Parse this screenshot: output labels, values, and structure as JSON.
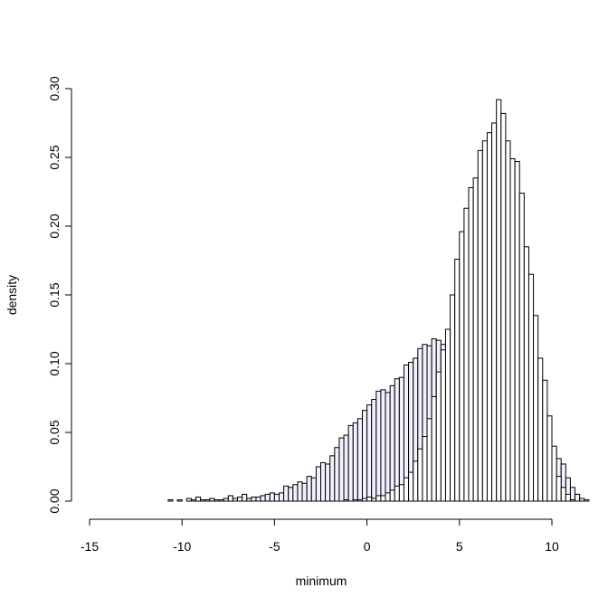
{
  "chart_data": {
    "type": "bar",
    "title": "",
    "xlabel": "minimum",
    "ylabel": "density",
    "xlim": [
      -15,
      10
    ],
    "ylim": [
      0,
      0.3
    ],
    "x_ticks": [
      "-15",
      "-10",
      "-5",
      "0",
      "5",
      "10"
    ],
    "y_ticks": [
      "0.00",
      "0.05",
      "0.10",
      "0.15",
      "0.20",
      "0.25",
      "0.30"
    ],
    "grid": false,
    "legend": "none",
    "bin_width": 0.25,
    "series": [
      {
        "fill": "#f0f0ff",
        "x_start": -12.0,
        "values": [
          0.0,
          0.0,
          0.0,
          0.0,
          0.0,
          0.001,
          0.0,
          0.001,
          0.0,
          0.002,
          0.001,
          0.003,
          0.001,
          0.001,
          0.002,
          0.001,
          0.001,
          0.002,
          0.004,
          0.002,
          0.003,
          0.005,
          0.002,
          0.003,
          0.003,
          0.004,
          0.005,
          0.006,
          0.005,
          0.006,
          0.011,
          0.01,
          0.012,
          0.014,
          0.013,
          0.018,
          0.017,
          0.025,
          0.028,
          0.027,
          0.033,
          0.039,
          0.046,
          0.048,
          0.055,
          0.057,
          0.06,
          0.066,
          0.07,
          0.074,
          0.08,
          0.081,
          0.079,
          0.084,
          0.089,
          0.09,
          0.099,
          0.101,
          0.104,
          0.111,
          0.114,
          0.113,
          0.118,
          0.117,
          0.114,
          0.118,
          0.117,
          0.113,
          0.112,
          0.112,
          0.11,
          0.11,
          0.115,
          0.122,
          0.115,
          0.11,
          0.104,
          0.106,
          0.096,
          0.097,
          0.088,
          0.083,
          0.079,
          0.072,
          0.075,
          0.06,
          0.055,
          0.048,
          0.039,
          0.031,
          0.027,
          0.017,
          0.01,
          0.005,
          0.002,
          0.001,
          0.0
        ]
      },
      {
        "fill": "#ffffff",
        "x_start": -3.0,
        "values": [
          0.0,
          0.0,
          0.0,
          0.0,
          0.0,
          0.0,
          0.0,
          0.001,
          0.0,
          0.001,
          0.001,
          0.002,
          0.003,
          0.002,
          0.004,
          0.004,
          0.006,
          0.008,
          0.011,
          0.012,
          0.017,
          0.021,
          0.029,
          0.038,
          0.047,
          0.06,
          0.076,
          0.094,
          0.11,
          0.125,
          0.15,
          0.176,
          0.196,
          0.213,
          0.228,
          0.235,
          0.255,
          0.262,
          0.268,
          0.275,
          0.292,
          0.282,
          0.262,
          0.249,
          0.247,
          0.224,
          0.185,
          0.165,
          0.135,
          0.104,
          0.088,
          0.062,
          0.04,
          0.018,
          0.01,
          0.005,
          0.001,
          0.0
        ]
      }
    ]
  }
}
